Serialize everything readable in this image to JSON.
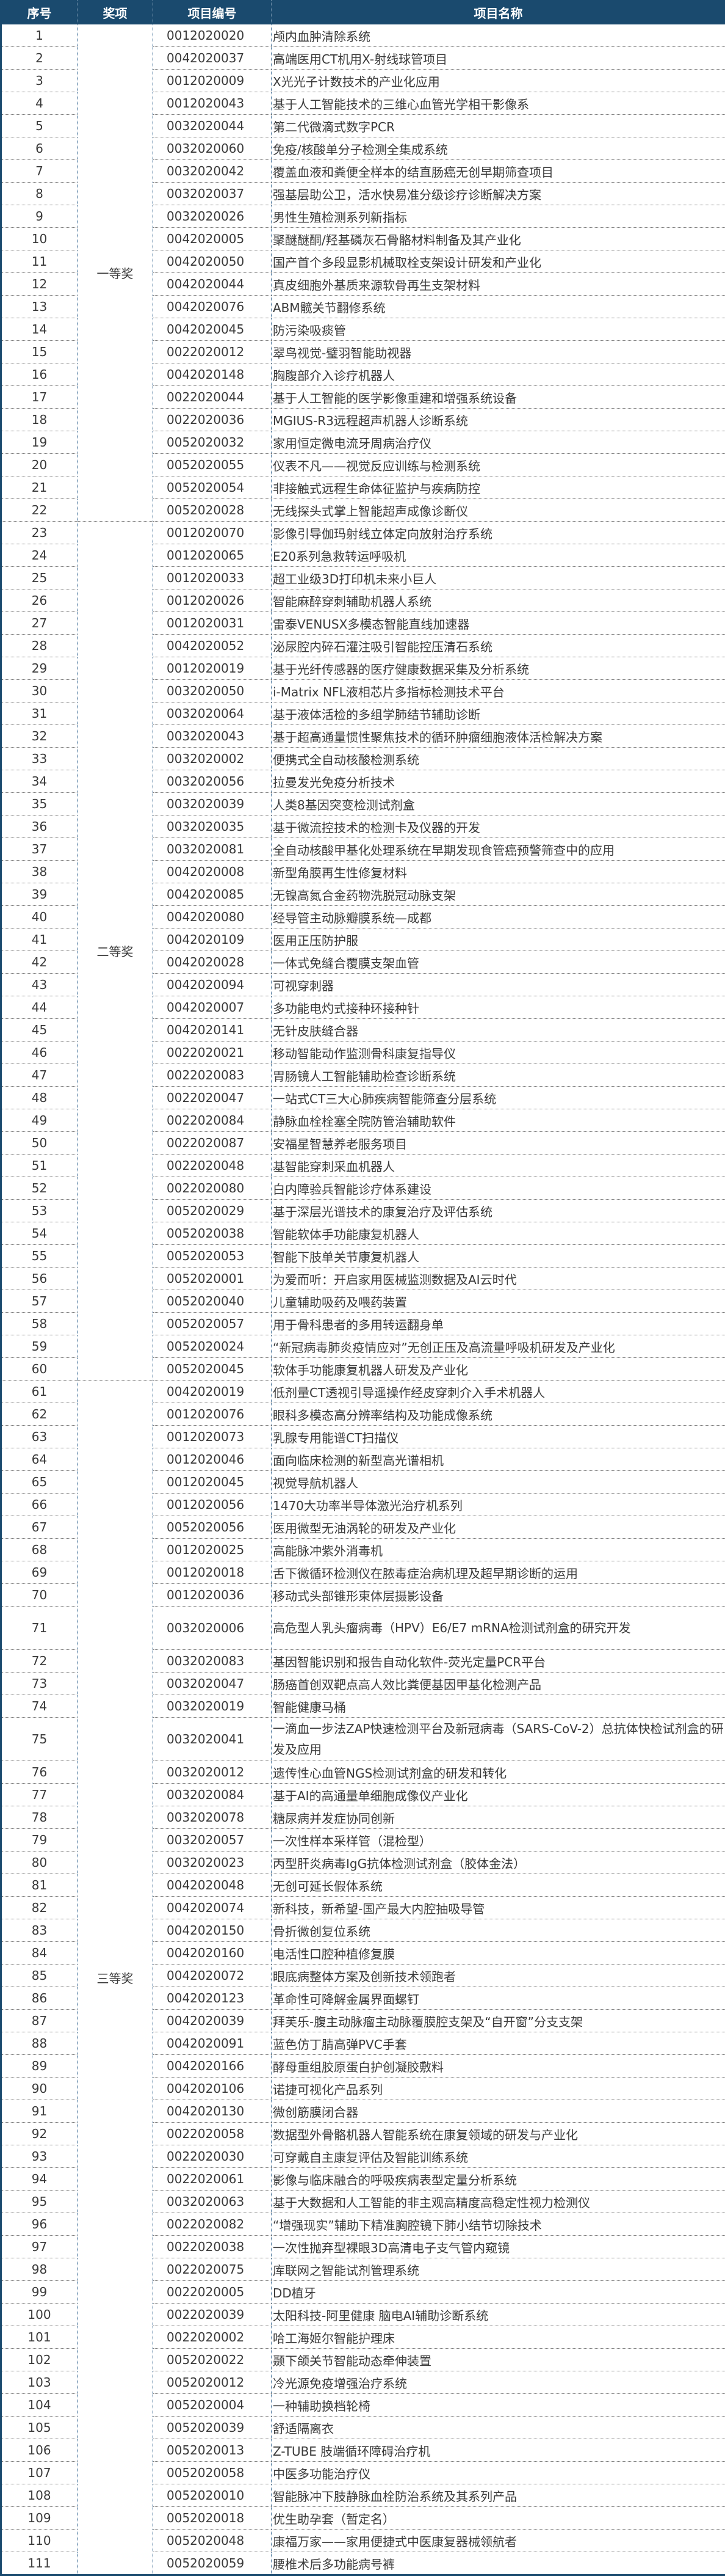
{
  "header": {
    "seq": "序号",
    "award": "奖项",
    "code": "项目编号",
    "name": "项目名称"
  },
  "colors": {
    "header_bg": "#1a4a6e",
    "header_text": "#ffffff"
  },
  "groups": [
    {
      "award": "一等奖",
      "rows": [
        [
          "1",
          "0012020020",
          "颅内血肿清除系统"
        ],
        [
          "2",
          "0042020037",
          "高端医用CT机用X-射线球管项目"
        ],
        [
          "3",
          "0012020009",
          "X光光子计数技术的产业化应用"
        ],
        [
          "4",
          "0012020043",
          "基于人工智能技术的三维心血管光学相干影像系"
        ],
        [
          "5",
          "0032020044",
          "第二代微滴式数字PCR"
        ],
        [
          "6",
          "0032020060",
          "免疫/核酸单分子检测全集成系统"
        ],
        [
          "7",
          "0032020042",
          "覆盖血液和粪便全样本的结直肠癌无创早期筛查项目"
        ],
        [
          "8",
          "0032020037",
          "强基层助公卫，活水快易准分级诊疗诊断解决方案"
        ],
        [
          "9",
          "0032020026",
          "男性生殖检测系列新指标"
        ],
        [
          "10",
          "0042020005",
          "聚醚醚酮/羟基磷灰石骨骼材料制备及其产业化"
        ],
        [
          "11",
          "0042020050",
          "国产首个多段显影机械取栓支架设计研发和产业化"
        ],
        [
          "12",
          "0042020044",
          "真皮细胞外基质来源软骨再生支架材料"
        ],
        [
          "13",
          "0042020076",
          "ABM髋关节翻修系统"
        ],
        [
          "14",
          "0042020045",
          "防污染吸痰管"
        ],
        [
          "15",
          "0022020012",
          "翠鸟视觉-璧羽智能助视器"
        ],
        [
          "16",
          "0042020148",
          "胸腹部介入诊疗机器人"
        ],
        [
          "17",
          "0022020044",
          "基于人工智能的医学影像重建和增强系统设备"
        ],
        [
          "18",
          "0022020036",
          "MGIUS-R3远程超声机器人诊断系统"
        ],
        [
          "19",
          "0052020032",
          "家用恒定微电流牙周病治疗仪"
        ],
        [
          "20",
          "0052020055",
          "仪表不凡——视觉反应训练与检测系统"
        ],
        [
          "21",
          "0052020054",
          "非接触式远程生命体征监护与疾病防控"
        ],
        [
          "22",
          "0052020028",
          "无线探头式掌上智能超声成像诊断仪"
        ]
      ]
    },
    {
      "award": "二等奖",
      "rows": [
        [
          "23",
          "0012020070",
          "影像引导伽玛射线立体定向放射治疗系统"
        ],
        [
          "24",
          "0012020065",
          "E20系列急救转运呼吸机"
        ],
        [
          "25",
          "0012020033",
          "超工业级3D打印机未来小巨人"
        ],
        [
          "26",
          "0012020026",
          "智能麻醉穿刺辅助机器人系统"
        ],
        [
          "27",
          "0012020031",
          "雷泰VENUSX多模态智能直线加速器"
        ],
        [
          "28",
          "0042020052",
          "泌尿腔内碎石灌注吸引智能控压清石系统"
        ],
        [
          "29",
          "0012020019",
          "基于光纤传感器的医疗健康数据采集及分析系统"
        ],
        [
          "30",
          "0032020050",
          "i-Matrix NFL液相芯片多指标检测技术平台"
        ],
        [
          "31",
          "0032020064",
          "基于液体活检的多组学肺结节辅助诊断"
        ],
        [
          "32",
          "0032020043",
          "基于超高通量惯性聚焦技术的循环肿瘤细胞液体活检解决方案"
        ],
        [
          "33",
          "0032020002",
          "便携式全自动核酸检测系统"
        ],
        [
          "34",
          "0032020056",
          "拉曼发光免疫分析技术"
        ],
        [
          "35",
          "0032020039",
          "人类8基因突变检测试剂盒"
        ],
        [
          "36",
          "0032020035",
          "基于微流控技术的检测卡及仪器的开发"
        ],
        [
          "37",
          "0032020081",
          "全自动核酸甲基化处理系统在早期发现食管癌预警筛查中的应用"
        ],
        [
          "38",
          "0042020008",
          "新型角膜再生性修复材料"
        ],
        [
          "39",
          "0042020085",
          "无镍高氮合金药物洗脱冠动脉支架"
        ],
        [
          "40",
          "0042020080",
          "经导管主动脉瓣膜系统—成都"
        ],
        [
          "41",
          "0042020109",
          "医用正压防护服"
        ],
        [
          "42",
          "0042020028",
          "一体式免缝合覆膜支架血管"
        ],
        [
          "43",
          "0042020094",
          "可视穿刺器"
        ],
        [
          "44",
          "0042020007",
          "多功能电灼式接种环接种针"
        ],
        [
          "45",
          "0042020141",
          "无针皮肤缝合器"
        ],
        [
          "46",
          "0022020021",
          "移动智能动作监测骨科康复指导仪"
        ],
        [
          "47",
          "0022020083",
          "胃肠镜人工智能辅助检查诊断系统"
        ],
        [
          "48",
          "0022020047",
          "一站式CT三大心肺疾病智能筛查分层系统"
        ],
        [
          "49",
          "0022020084",
          "静脉血栓栓塞全院防管治辅助软件"
        ],
        [
          "50",
          "0022020087",
          "安福星智慧养老服务项目"
        ],
        [
          "51",
          "0022020048",
          "基智能穿刺采血机器人"
        ],
        [
          "52",
          "0022020080",
          "白内障验兵智能诊疗体系建设"
        ],
        [
          "53",
          "0052020029",
          "基于深层光谱技术的康复治疗及评估系统"
        ],
        [
          "54",
          "0052020038",
          "智能软体手功能康复机器人"
        ],
        [
          "55",
          "0052020053",
          "智能下肢单关节康复机器人"
        ],
        [
          "56",
          "0052020001",
          "为爱而听：开启家用医械监测数据及AI云时代"
        ],
        [
          "57",
          "0052020040",
          "儿童辅助吸药及喂药装置"
        ],
        [
          "58",
          "0052020057",
          "用于骨科患者的多用转运翻身单"
        ],
        [
          "59",
          "0052020024",
          "“新冠病毒肺炎疫情应对”无创正压及高流量呼吸机研发及产业化"
        ],
        [
          "60",
          "0052020045",
          "软体手功能康复机器人研发及产业化"
        ]
      ]
    },
    {
      "award": "三等奖",
      "rows": [
        [
          "61",
          "0042020019",
          "低剂量CT透视引导遥操作经皮穿刺介入手术机器人"
        ],
        [
          "62",
          "0012020076",
          "眼科多模态高分辨率结构及功能成像系统"
        ],
        [
          "63",
          "0012020073",
          "乳腺专用能谱CT扫描仪"
        ],
        [
          "64",
          "0012020046",
          "面向临床检测的新型高光谱相机"
        ],
        [
          "65",
          "0012020045",
          "视觉导航机器人"
        ],
        [
          "66",
          "0012020056",
          "1470大功率半导体激光治疗机系列"
        ],
        [
          "67",
          "0052020056",
          "医用微型无油涡轮的研发及产业化"
        ],
        [
          "68",
          "0012020025",
          "高能脉冲紫外消毒机"
        ],
        [
          "69",
          "0012020018",
          "舌下微循环检测仪在脓毒症治病机理及超早期诊断的运用"
        ],
        [
          "70",
          "0012020036",
          "移动式头部锥形束体层摄影设备"
        ],
        [
          "71",
          "0032020006",
          "高危型人乳头瘤病毒（HPV）E6/E7 mRNA检测试剂盒的研究开发"
        ],
        [
          "72",
          "0032020083",
          "基因智能识别和报告自动化软件-荧光定量PCR平台"
        ],
        [
          "73",
          "0032020047",
          "肠癌首创双靶点高人效比粪便基因甲基化检测产品"
        ],
        [
          "74",
          "0032020019",
          "智能健康马桶"
        ],
        [
          "75",
          "0032020041",
          "一滴血一步法ZAP快速检测平台及新冠病毒（SARS-CoV-2）总抗体快检试剂盒的研发及应用"
        ],
        [
          "76",
          "0032020012",
          "遗传性心血管NGS检测试剂盒的研发和转化"
        ],
        [
          "77",
          "0032020084",
          "基于AI的高通量单细胞成像仪产业化"
        ],
        [
          "78",
          "0032020078",
          "糖尿病并发症协同创新"
        ],
        [
          "79",
          "0032020057",
          "一次性样本采样管（混检型）"
        ],
        [
          "80",
          "0032020023",
          "丙型肝炎病毒IgG抗体检测试剂盒（胶体金法）"
        ],
        [
          "81",
          "0042020048",
          "无创可延长假体系统"
        ],
        [
          "82",
          "0042020074",
          "新科技，新希望-国产最大内腔抽吸导管"
        ],
        [
          "83",
          "0042020150",
          "骨折微创复位系统"
        ],
        [
          "84",
          "0042020160",
          "电活性口腔种植修复膜"
        ],
        [
          "85",
          "0042020072",
          "眼底病整体方案及创新技术领跑者"
        ],
        [
          "86",
          "0042020123",
          "革命性可降解金属界面螺钉"
        ],
        [
          "87",
          "0042020039",
          "拜芙乐-腹主动脉瘤主动脉覆膜腔支架及“自开窗”分支支架"
        ],
        [
          "88",
          "0042020091",
          "蓝色仿丁腈高弹PVC手套"
        ],
        [
          "89",
          "0042020166",
          "酵母重组胶原蛋白护创凝胶敷料"
        ],
        [
          "90",
          "0042020106",
          "诺捷可视化产品系列"
        ],
        [
          "91",
          "0042020130",
          "微创筋膜闭合器"
        ],
        [
          "92",
          "0022020058",
          "数据型外骨骼机器人智能系统在康复领域的研发与产业化"
        ],
        [
          "93",
          "0022020030",
          "可穿戴自主康复评估及智能训练系统"
        ],
        [
          "94",
          "0022020061",
          "影像与临床融合的呼吸疾病表型定量分析系统"
        ],
        [
          "95",
          "0032020063",
          "基于大数据和人工智能的非主观高精度高稳定性视力检测仪"
        ],
        [
          "96",
          "0022020082",
          "“增强现实”辅助下精准胸腔镜下肺小结节切除技术"
        ],
        [
          "97",
          "0022020038",
          "一次性抛弃型裸眼3D高清电子支气管内窥镜"
        ],
        [
          "98",
          "0022020075",
          "库联网之智能试剂管理系统"
        ],
        [
          "99",
          "0022020005",
          "DD植牙"
        ],
        [
          "100",
          "0022020039",
          "太阳科技-阿里健康 脑电AI辅助诊断系统"
        ],
        [
          "101",
          "0022020002",
          "哈工海姬尔智能护理床"
        ],
        [
          "102",
          "0052020022",
          "颞下颌关节智能动态牵伸装置"
        ],
        [
          "103",
          "0052020012",
          "冷光源免疫增强治疗系统"
        ],
        [
          "104",
          "0052020004",
          "一种辅助换档轮椅"
        ],
        [
          "105",
          "0052020039",
          "舒适隔离衣"
        ],
        [
          "106",
          "0052020013",
          "Z-TUBE 肢端循环障碍治疗机"
        ],
        [
          "107",
          "0052020058",
          "中医多功能治疗仪"
        ],
        [
          "108",
          "0052020010",
          "智能脉冲下肢静脉血栓防治系统及其系列产品"
        ],
        [
          "109",
          "0052020018",
          "优生助孕套（暂定名）"
        ],
        [
          "110",
          "0052020048",
          "康福万家——家用便捷式中医康复器械领航者"
        ],
        [
          "111",
          "0052020059",
          "腰椎术后多功能病号裤"
        ]
      ]
    }
  ]
}
